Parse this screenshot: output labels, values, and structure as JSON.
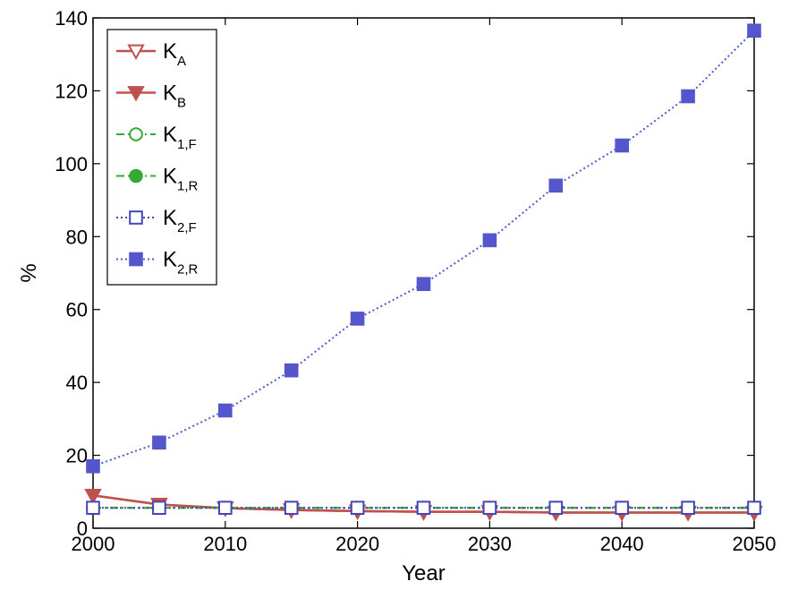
{
  "chart_data": {
    "type": "line",
    "title": "",
    "xlabel": "Year",
    "ylabel": "%",
    "xlim": [
      2000,
      2050
    ],
    "ylim": [
      0,
      140
    ],
    "xticks": [
      2000,
      2010,
      2020,
      2030,
      2040,
      2050
    ],
    "yticks": [
      0,
      20,
      40,
      60,
      80,
      100,
      120,
      140
    ],
    "grid": false,
    "legend_position": "top-left",
    "x": [
      2000,
      2005,
      2010,
      2015,
      2020,
      2025,
      2030,
      2035,
      2040,
      2045,
      2050
    ],
    "series": [
      {
        "name": "K_A",
        "main": "K",
        "sub": "A",
        "color": "#c0504d",
        "line": "solid",
        "marker": "triangle-down",
        "filled": false,
        "values": [
          9,
          6.5,
          5.5,
          5,
          4.7,
          4.5,
          4.5,
          4.3,
          4.3,
          4.3,
          4.3
        ]
      },
      {
        "name": "K_B",
        "main": "K",
        "sub": "B",
        "color": "#c0504d",
        "line": "solid",
        "marker": "triangle-down",
        "filled": true,
        "values": [
          9,
          6.5,
          5.5,
          5,
          4.7,
          4.5,
          4.5,
          4.3,
          4.3,
          4.3,
          4.3
        ]
      },
      {
        "name": "K_1,F",
        "main": "K",
        "sub": "1,F",
        "color": "#33aa33",
        "line": "dashdot",
        "marker": "circle",
        "filled": false,
        "values": [
          5.6,
          5.6,
          5.6,
          5.6,
          5.6,
          5.6,
          5.6,
          5.6,
          5.6,
          5.6,
          5.6
        ]
      },
      {
        "name": "K_1,R",
        "main": "K",
        "sub": "1,R",
        "color": "#33aa33",
        "line": "dashdot",
        "marker": "circle",
        "filled": true,
        "values": [
          5.6,
          5.6,
          5.6,
          5.6,
          5.6,
          5.6,
          5.6,
          5.6,
          5.6,
          5.6,
          5.6
        ]
      },
      {
        "name": "K_2,F",
        "main": "K",
        "sub": "2,F",
        "color": "#4444bb",
        "line": "dotted",
        "marker": "square",
        "filled": false,
        "values": [
          5.6,
          5.6,
          5.6,
          5.6,
          5.6,
          5.6,
          5.6,
          5.6,
          5.6,
          5.6,
          5.6
        ]
      },
      {
        "name": "K_2,R",
        "main": "K",
        "sub": "2,R",
        "color": "#5555cc",
        "line": "dotted",
        "marker": "square",
        "filled": true,
        "values": [
          17,
          23.5,
          32.3,
          43.3,
          57.5,
          67,
          79,
          94,
          105,
          118.5,
          136.5
        ]
      }
    ]
  }
}
